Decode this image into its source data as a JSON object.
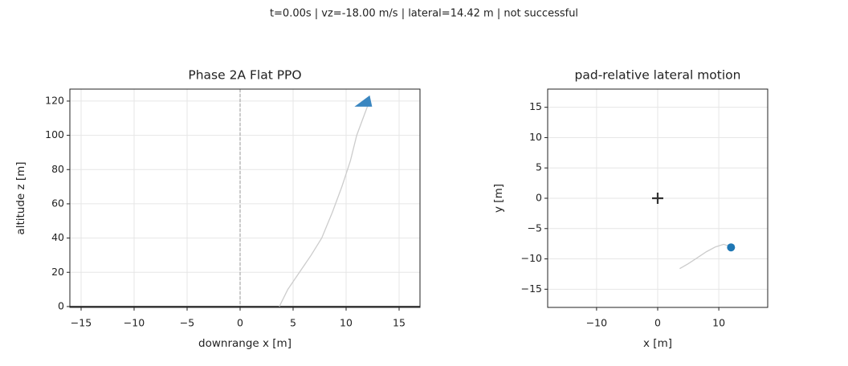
{
  "suptitle": "t=0.00s | vz=-18.00 m/s | lateral=14.42 m | not successful",
  "chart_data": [
    {
      "type": "line",
      "title": "Phase 2A Flat PPO",
      "xlabel": "downrange x [m]",
      "ylabel": "altitude z [m]",
      "xlim": [
        -16.06,
        16.97
      ],
      "ylim": [
        -0.5,
        127
      ],
      "xticks": [
        {
          "value": -15,
          "label": "−15"
        },
        {
          "value": -10,
          "label": "−10"
        },
        {
          "value": -5,
          "label": "−5"
        },
        0,
        5,
        10,
        15
      ],
      "yticks": [
        0,
        20,
        40,
        60,
        80,
        100,
        120
      ],
      "grid": true,
      "series": [
        {
          "color": "#cccccc",
          "x": [
            3.7,
            4.5,
            5.6,
            6.7,
            7.7,
            8.7,
            9.6,
            10.4,
            11.0,
            11.6,
            12.2
          ],
          "values": [
            0,
            10,
            20,
            30,
            40,
            55,
            70,
            85,
            100,
            110,
            120
          ]
        }
      ],
      "vline": 0,
      "hline": 0,
      "marker": {
        "x": 12.0,
        "y": 120,
        "shape": "triangle",
        "color": "#3a86c0"
      }
    },
    {
      "type": "line",
      "title": "pad-relative lateral motion",
      "xlabel": "x [m]",
      "ylabel": "y [m]",
      "xlim": [
        -18,
        18
      ],
      "ylim": [
        -18,
        18
      ],
      "xticks": [
        {
          "value": -10,
          "label": "−10"
        },
        0,
        10
      ],
      "yticks": [
        {
          "value": -15,
          "label": "−15"
        },
        {
          "value": -10,
          "label": "−10"
        },
        {
          "value": -5,
          "label": "−5"
        },
        0,
        5,
        10,
        15
      ],
      "grid": true,
      "series": [
        {
          "color": "#cccccc",
          "x": [
            3.6,
            5,
            6.5,
            8,
            9.5,
            10.8,
            12
          ],
          "values": [
            -11.6,
            -10.8,
            -9.8,
            -8.8,
            -8,
            -7.6,
            -8
          ]
        }
      ],
      "pad": {
        "x": 0,
        "y": 0
      },
      "marker": {
        "x": 12,
        "y": -8.1,
        "shape": "circle",
        "color": "#1f77b4"
      }
    }
  ]
}
